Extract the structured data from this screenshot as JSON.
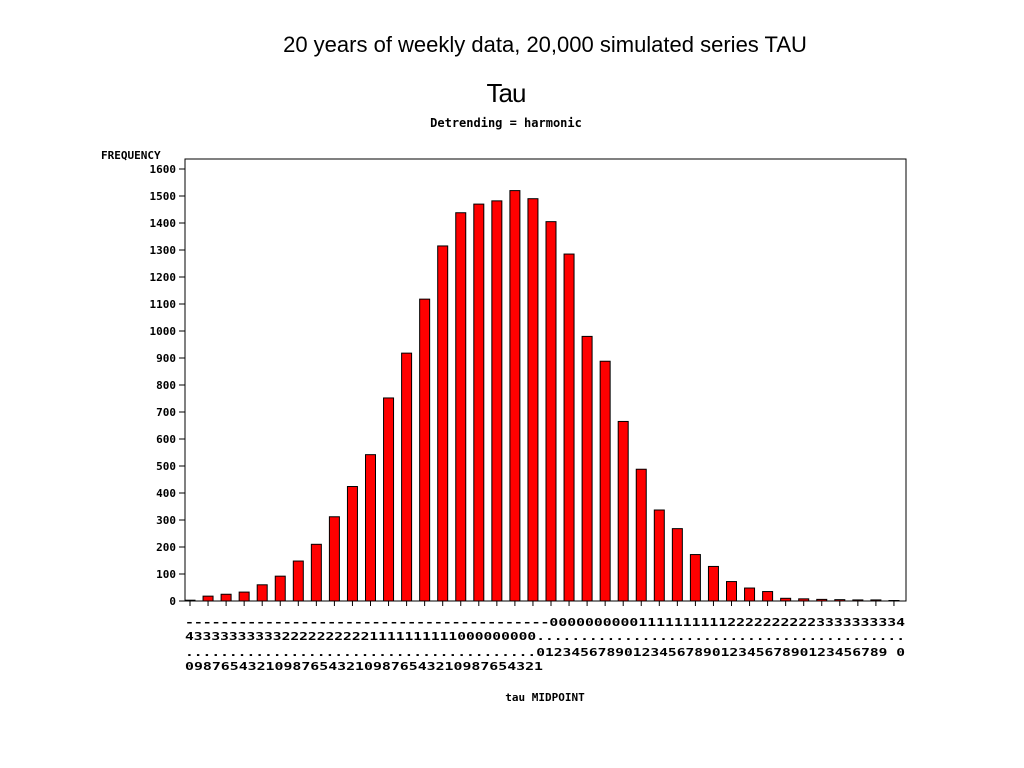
{
  "slide": {
    "title": "20 years of weekly data, 20,000 simulated series TAU"
  },
  "chart_data": {
    "type": "bar",
    "title": "Tau",
    "subtitle": "Detrending = harmonic",
    "ylabel": "FREQUENCY",
    "xlabel": "tau MIDPOINT",
    "ylim": [
      0,
      1600
    ],
    "yticks": [
      0,
      100,
      200,
      300,
      400,
      500,
      600,
      700,
      800,
      900,
      1000,
      1100,
      1200,
      1300,
      1400,
      1500,
      1600
    ],
    "tick_label_rows": [
      "-----------------------------------------0000000000111111111122222222223333333334",
      "4333333333322222222221111111111000000000..........................................",
      "........................................0123456789012345678901234567890123456789 0",
      "0987654321098765432109876543210987654321"
    ],
    "categories": [
      -4.0,
      -3.9,
      -3.8,
      -3.7,
      -3.6,
      -3.5,
      -3.4,
      -3.3,
      -3.2,
      -3.1,
      -3.0,
      -2.9,
      -2.8,
      -2.7,
      -2.6,
      -2.5,
      -2.4,
      -2.3,
      -2.2,
      -2.1,
      -2.0,
      -1.9,
      -1.8,
      -1.7,
      -1.6,
      -1.5,
      -1.4,
      -1.3,
      -1.2,
      -1.1,
      -1.0,
      -0.9,
      -0.8,
      -0.7,
      -0.6,
      -0.5,
      -0.4,
      -0.3,
      -0.2,
      -0.1
    ],
    "values": [
      3,
      18,
      25,
      33,
      60,
      92,
      148,
      210,
      312,
      424,
      542,
      752,
      918,
      1118,
      1315,
      1438,
      1470,
      1482,
      1520,
      1490,
      1405,
      1285,
      980,
      888,
      665,
      488,
      337,
      268,
      172,
      128,
      72,
      48,
      35,
      10,
      8,
      6,
      5,
      4,
      4,
      0
    ],
    "colors": {
      "bar_fill": "#ff0000",
      "bar_stroke": "#000000",
      "axis": "#000000"
    },
    "grid": false,
    "legend": "none"
  }
}
